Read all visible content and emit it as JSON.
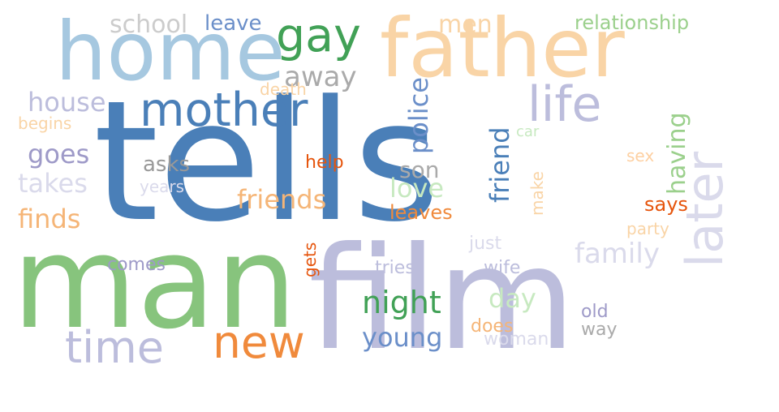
{
  "words": [
    {
      "text": "tells",
      "color": "#4a7fb8",
      "vertical": false
    },
    {
      "text": "man",
      "color": "#87c47d",
      "vertical": false
    },
    {
      "text": "film",
      "color": "#bcbddc",
      "vertical": false
    },
    {
      "text": "father",
      "color": "#f9d4a6",
      "vertical": false
    },
    {
      "text": "home",
      "color": "#a6c8e0",
      "vertical": false
    },
    {
      "text": "gay",
      "color": "#41a156",
      "vertical": false
    },
    {
      "text": "mother",
      "color": "#4a7fb8",
      "vertical": false
    },
    {
      "text": "later",
      "color": "#dadaeb",
      "vertical": true
    },
    {
      "text": "life",
      "color": "#bcbddc",
      "vertical": false
    },
    {
      "text": "time",
      "color": "#bcbddc",
      "vertical": false
    },
    {
      "text": "new",
      "color": "#f08a3c",
      "vertical": false
    },
    {
      "text": "school",
      "color": "#cccccc",
      "vertical": false
    },
    {
      "text": "leave",
      "color": "#6b8fc9",
      "vertical": false
    },
    {
      "text": "men",
      "color": "#f9d4a6",
      "vertical": false
    },
    {
      "text": "relationship",
      "color": "#9bd08c",
      "vertical": false
    },
    {
      "text": "away",
      "color": "#aaaaaa",
      "vertical": false
    },
    {
      "text": "death",
      "color": "#f9d4a6",
      "vertical": false
    },
    {
      "text": "house",
      "color": "#bcbddc",
      "vertical": false
    },
    {
      "text": "begins",
      "color": "#f9d4a6",
      "vertical": false
    },
    {
      "text": "police",
      "color": "#6b8fc9",
      "vertical": true
    },
    {
      "text": "friend",
      "color": "#4a7fb8",
      "vertical": true
    },
    {
      "text": "car",
      "color": "#c7e9c0",
      "vertical": false
    },
    {
      "text": "having",
      "color": "#9bd08c",
      "vertical": true
    },
    {
      "text": "goes",
      "color": "#9e9ac8",
      "vertical": false
    },
    {
      "text": "asks",
      "color": "#999999",
      "vertical": false
    },
    {
      "text": "help",
      "color": "#e6550d",
      "vertical": false
    },
    {
      "text": "son",
      "color": "#aaaaaa",
      "vertical": false
    },
    {
      "text": "sex",
      "color": "#fdd0a2",
      "vertical": false
    },
    {
      "text": "takes",
      "color": "#dadaeb",
      "vertical": false
    },
    {
      "text": "years",
      "color": "#dadaeb",
      "vertical": false
    },
    {
      "text": "friends",
      "color": "#f5b577",
      "vertical": false
    },
    {
      "text": "love",
      "color": "#c7e9c0",
      "vertical": false
    },
    {
      "text": "make",
      "color": "#f9d4a6",
      "vertical": true
    },
    {
      "text": "says",
      "color": "#e6550d",
      "vertical": false
    },
    {
      "text": "finds",
      "color": "#f5b577",
      "vertical": false
    },
    {
      "text": "leaves",
      "color": "#f08a3c",
      "vertical": false
    },
    {
      "text": "party",
      "color": "#f9d4a6",
      "vertical": false
    },
    {
      "text": "just",
      "color": "#dadaeb",
      "vertical": false
    },
    {
      "text": "family",
      "color": "#dadaeb",
      "vertical": false
    },
    {
      "text": "gets",
      "color": "#e6550d",
      "vertical": true
    },
    {
      "text": "comes",
      "color": "#9e9ac8",
      "vertical": false
    },
    {
      "text": "tries",
      "color": "#bcbddc",
      "vertical": false
    },
    {
      "text": "wife",
      "color": "#bcbddc",
      "vertical": false
    },
    {
      "text": "night",
      "color": "#41a156",
      "vertical": false
    },
    {
      "text": "day",
      "color": "#c7e9c0",
      "vertical": false
    },
    {
      "text": "old",
      "color": "#9e9ac8",
      "vertical": false
    },
    {
      "text": "way",
      "color": "#aaaaaa",
      "vertical": false
    },
    {
      "text": "does",
      "color": "#f5b577",
      "vertical": false
    },
    {
      "text": "young",
      "color": "#6b8fc9",
      "vertical": false
    },
    {
      "text": "woman",
      "color": "#dadaeb",
      "vertical": false
    }
  ]
}
